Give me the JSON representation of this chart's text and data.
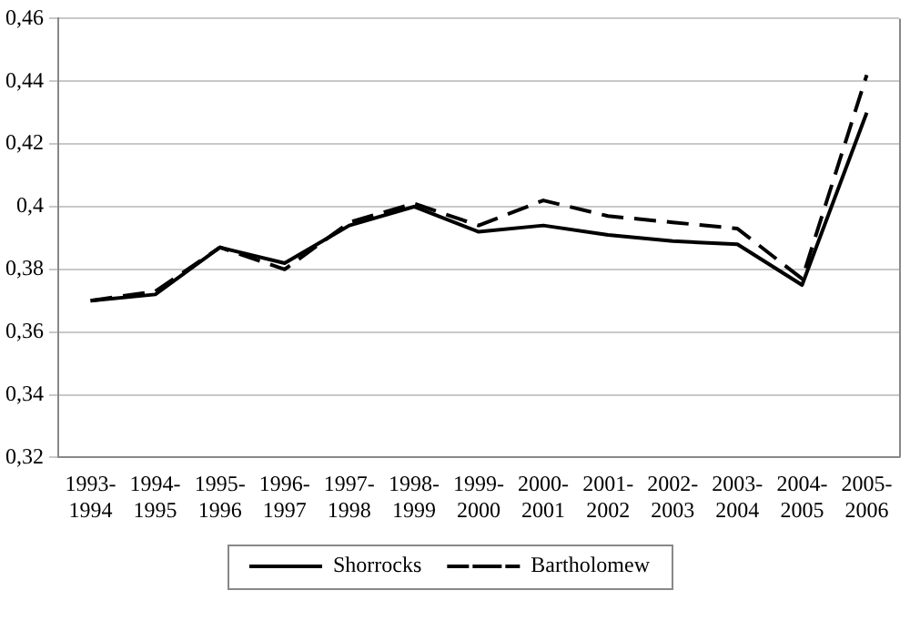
{
  "chart_data": {
    "type": "line",
    "categories": [
      "1993-1994",
      "1994-1995",
      "1995-1996",
      "1996-1997",
      "1997-1998",
      "1998-1999",
      "1999-2000",
      "2000-2001",
      "2001-2002",
      "2002-2003",
      "2003-2004",
      "2004-2005",
      "2005-2006"
    ],
    "series": [
      {
        "name": "Shorrocks",
        "color": "#000000",
        "line_style": "solid",
        "values": [
          0.37,
          0.372,
          0.387,
          0.382,
          0.394,
          0.4,
          0.392,
          0.394,
          0.391,
          0.389,
          0.388,
          0.375,
          0.43
        ]
      },
      {
        "name": "Bartholomew",
        "color": "#000000",
        "line_style": "dashed",
        "values": [
          0.37,
          0.373,
          0.387,
          0.38,
          0.395,
          0.401,
          0.394,
          0.402,
          0.397,
          0.395,
          0.393,
          0.377,
          0.442
        ]
      }
    ],
    "ylim": [
      0.32,
      0.46
    ],
    "yticks": [
      {
        "value": 0.32,
        "label": "0,32"
      },
      {
        "value": 0.34,
        "label": "0,34"
      },
      {
        "value": 0.36,
        "label": "0,36"
      },
      {
        "value": 0.38,
        "label": "0,38"
      },
      {
        "value": 0.4,
        "label": "0,4"
      },
      {
        "value": 0.42,
        "label": "0,42"
      },
      {
        "value": 0.44,
        "label": "0,44"
      },
      {
        "value": 0.46,
        "label": "0,46"
      }
    ],
    "grid": "y",
    "legend": "bottom",
    "marker": "none"
  }
}
